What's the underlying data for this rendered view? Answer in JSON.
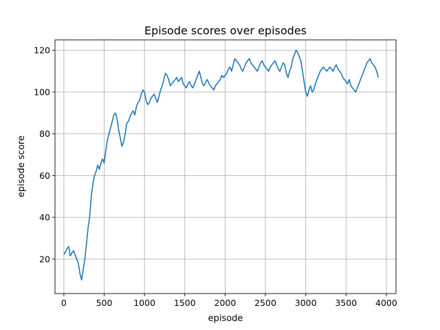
{
  "chart_data": {
    "type": "line",
    "title": "Episode scores over episodes",
    "xlabel": "episode",
    "ylabel": "episode score",
    "xlim": [
      -110,
      4120
    ],
    "ylim": [
      3.5,
      125
    ],
    "xticks": [
      0,
      500,
      1000,
      1500,
      2000,
      2500,
      3000,
      3500,
      4000
    ],
    "yticks": [
      20,
      40,
      60,
      80,
      100,
      120
    ],
    "grid": true,
    "line_color": "#1f77b4",
    "series": [
      {
        "x": [
          0,
          20,
          40,
          60,
          80,
          100,
          120,
          140,
          160,
          180,
          200,
          220,
          240,
          260,
          280,
          300,
          320,
          340,
          360,
          380,
          400,
          420,
          440,
          460,
          480,
          500,
          520,
          540,
          560,
          580,
          600,
          620,
          640,
          660,
          680,
          700,
          720,
          740,
          760,
          780,
          800,
          820,
          840,
          860,
          880,
          900,
          920,
          940,
          960,
          980,
          1000,
          1020,
          1040,
          1060,
          1080,
          1100,
          1120,
          1140,
          1160,
          1180,
          1200,
          1220,
          1240,
          1260,
          1280,
          1300,
          1320,
          1340,
          1360,
          1380,
          1400,
          1420,
          1440,
          1460,
          1480,
          1500,
          1520,
          1540,
          1560,
          1580,
          1600,
          1620,
          1640,
          1660,
          1680,
          1700,
          1720,
          1740,
          1760,
          1780,
          1800,
          1820,
          1840,
          1860,
          1880,
          1900,
          1920,
          1940,
          1960,
          1980,
          2000,
          2020,
          2040,
          2060,
          2080,
          2100,
          2120,
          2140,
          2160,
          2180,
          2200,
          2220,
          2240,
          2260,
          2280,
          2300,
          2320,
          2340,
          2360,
          2380,
          2400,
          2420,
          2440,
          2460,
          2480,
          2500,
          2520,
          2540,
          2560,
          2580,
          2600,
          2620,
          2640,
          2660,
          2680,
          2700,
          2720,
          2740,
          2760,
          2780,
          2800,
          2820,
          2840,
          2860,
          2880,
          2900,
          2920,
          2940,
          2960,
          2980,
          3000,
          3020,
          3040,
          3060,
          3080,
          3100,
          3120,
          3140,
          3160,
          3180,
          3200,
          3220,
          3240,
          3260,
          3280,
          3300,
          3320,
          3340,
          3360,
          3380,
          3400,
          3420,
          3440,
          3460,
          3480,
          3500,
          3520,
          3540,
          3560,
          3580,
          3600,
          3620,
          3640,
          3660,
          3680,
          3700,
          3720,
          3740,
          3760,
          3780,
          3800,
          3820,
          3840,
          3860,
          3880,
          3900
        ],
        "y": [
          22,
          23.5,
          25,
          26,
          21.5,
          23,
          24,
          22,
          20,
          18,
          13,
          10,
          15,
          20,
          27,
          35,
          40,
          50,
          56,
          60,
          62,
          65,
          63,
          66,
          68,
          66,
          72,
          77,
          80,
          83,
          86,
          89,
          90,
          87,
          82,
          78,
          74,
          76,
          80,
          85,
          86,
          88,
          90,
          91,
          89,
          93,
          95,
          96,
          99,
          101,
          100,
          96,
          94,
          95,
          97,
          98,
          99,
          97,
          95,
          98,
          101,
          103,
          106,
          109,
          108,
          106,
          103,
          104,
          105,
          106,
          107,
          105,
          106,
          107,
          104,
          103,
          102,
          104,
          105,
          103,
          102,
          104,
          106,
          108,
          110,
          107,
          104,
          103,
          105,
          106,
          104,
          103,
          102,
          101,
          103,
          104,
          105,
          106,
          108,
          107,
          108,
          109,
          111,
          112,
          110,
          113,
          116,
          115,
          114,
          113,
          111,
          110,
          112,
          114,
          115,
          116,
          114,
          113,
          112,
          111,
          110,
          112,
          114,
          115,
          113,
          112,
          111,
          110,
          112,
          113,
          114,
          115,
          113,
          111,
          110,
          112,
          114,
          113,
          109,
          107,
          110,
          112,
          116,
          118,
          120,
          119,
          117,
          115,
          110,
          105,
          100,
          98,
          101,
          103,
          100,
          101,
          104,
          106,
          108,
          110,
          111,
          112,
          111,
          110,
          111,
          112,
          111,
          110,
          112,
          113,
          111,
          110,
          109,
          107,
          106,
          105,
          104,
          106,
          103,
          102,
          101,
          100,
          102,
          104,
          106,
          108,
          110,
          112,
          114,
          115,
          116,
          114,
          113,
          112,
          110,
          107
        ]
      }
    ]
  }
}
